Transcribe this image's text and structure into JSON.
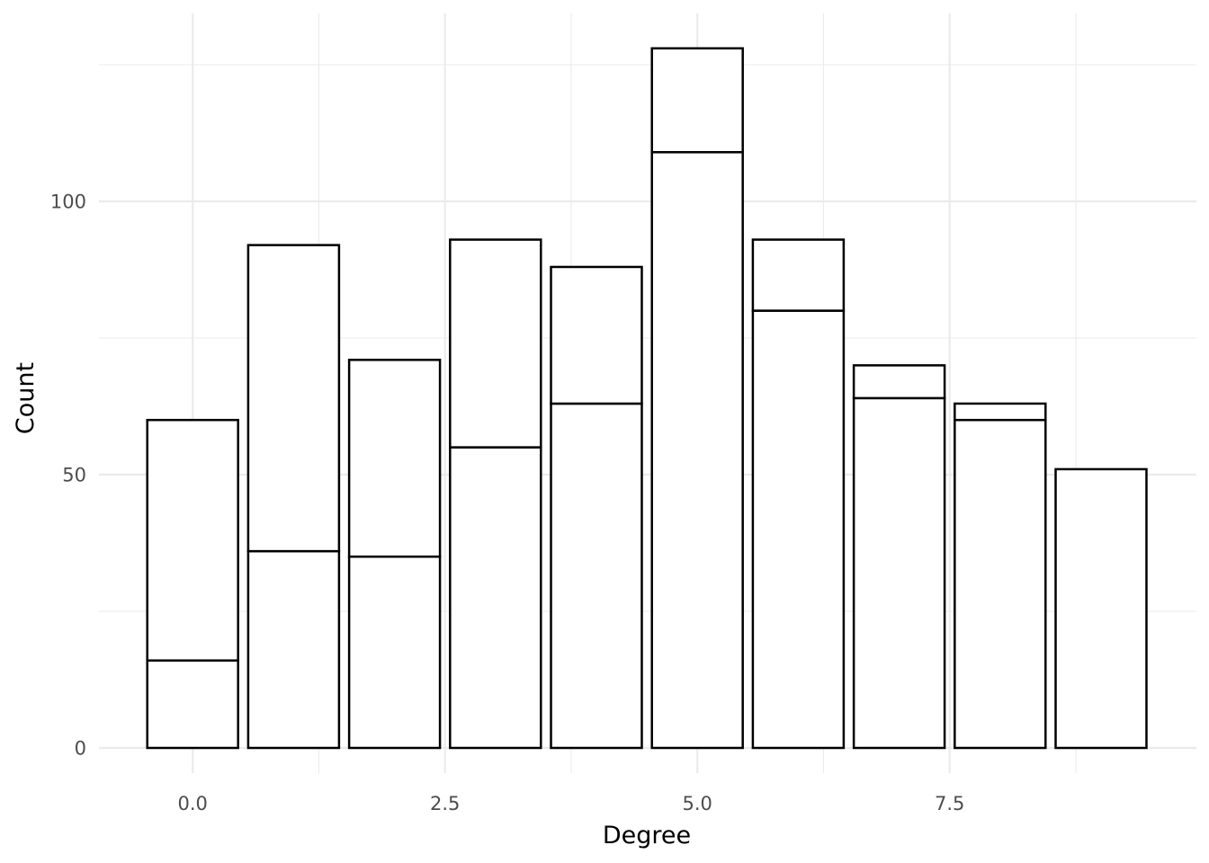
{
  "chart_data": {
    "type": "bar",
    "stacked": true,
    "title": "",
    "xlabel": "Degree",
    "ylabel": "Count",
    "xlim": [
      -0.9,
      9.9
    ],
    "ylim": [
      0,
      130
    ],
    "x_ticks": [
      "0.0",
      "2.5",
      "5.0",
      "7.5"
    ],
    "y_ticks": [
      "0",
      "50",
      "100"
    ],
    "grid": true,
    "legend": "none",
    "bar_fill": "#ffffff",
    "bar_outline": "#000000",
    "grid_color": "#ebebeb",
    "categories": [
      0,
      1,
      2,
      3,
      4,
      5,
      6,
      7,
      8,
      9
    ],
    "series": [
      {
        "values": [
          16,
          36,
          35,
          55,
          63,
          109,
          80,
          64,
          60,
          51
        ]
      },
      {
        "values": [
          44,
          56,
          36,
          38,
          25,
          19,
          13,
          6,
          3,
          0
        ]
      }
    ]
  }
}
